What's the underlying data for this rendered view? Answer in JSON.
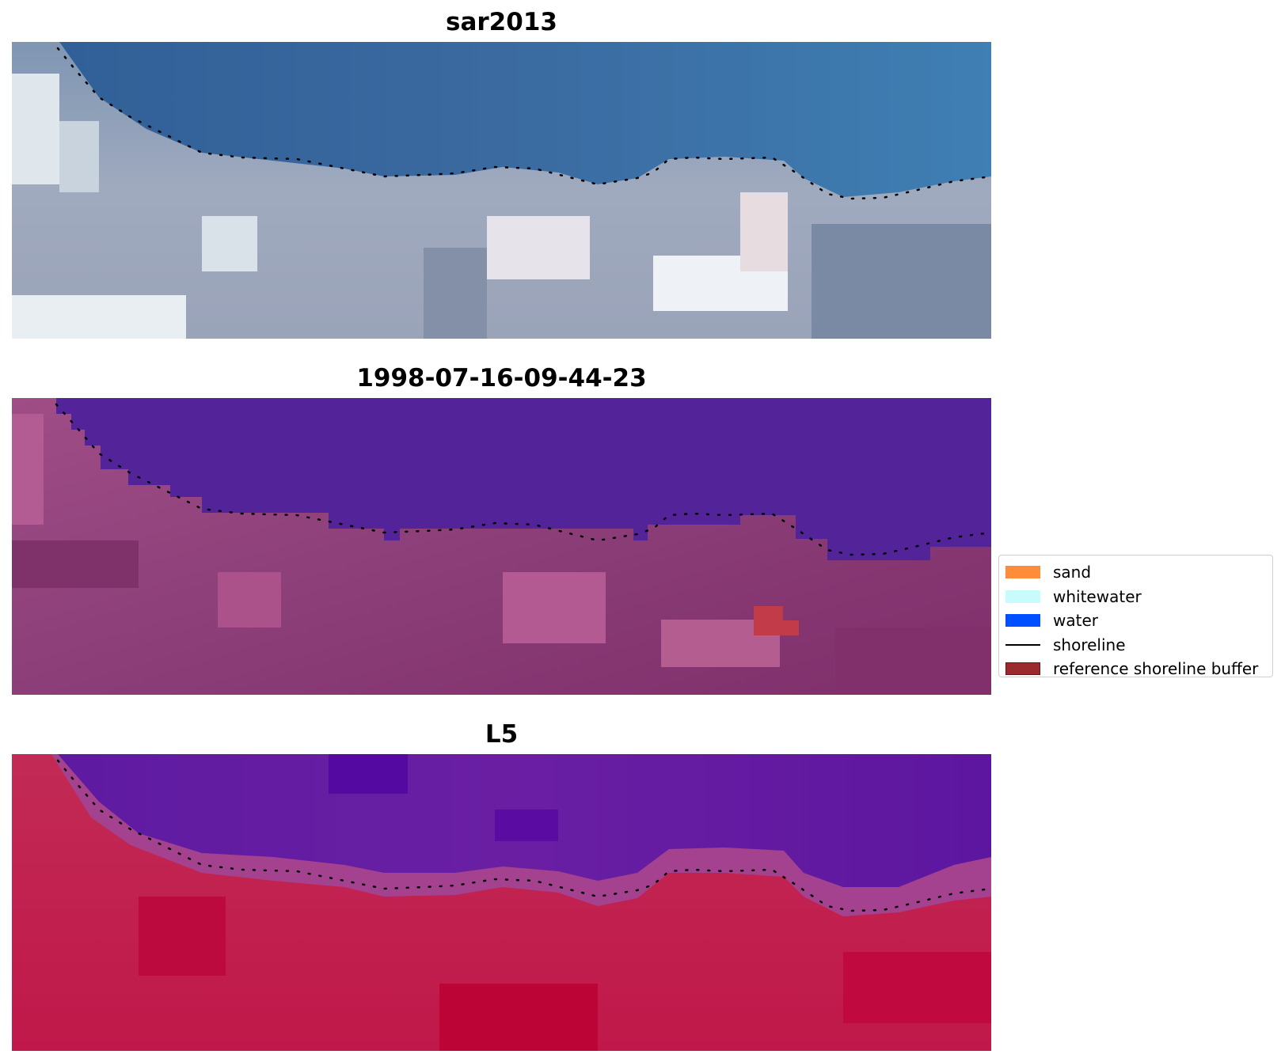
{
  "panels": [
    {
      "title": "sar2013",
      "type": "rgb-image",
      "colors": [
        "#3f6fa3",
        "#8ea3bd",
        "#e9ecf1"
      ]
    },
    {
      "title": "1998-07-16-09-44-23",
      "type": "classified-image",
      "colors": [
        "#53239a",
        "#93467c",
        "#c13c48"
      ]
    },
    {
      "title": "L5",
      "type": "index-image",
      "colors": [
        "#5e0f9e",
        "#c21e4c"
      ]
    }
  ],
  "legend": {
    "placement": "center-right",
    "entries": [
      {
        "label": "sand",
        "kind": "patch",
        "color": "#ff8c3a"
      },
      {
        "label": "whitewater",
        "kind": "patch",
        "color": "#c8fcfc"
      },
      {
        "label": "water",
        "kind": "patch",
        "color": "#0050ff"
      },
      {
        "label": "shoreline",
        "kind": "line",
        "color": "#000000"
      },
      {
        "label": "reference shoreline buffer",
        "kind": "patch",
        "color": "#9b2a2e",
        "edge": "#6a1417"
      }
    ]
  },
  "shoreline_style": "dotted",
  "shoreline_color": "#000000"
}
